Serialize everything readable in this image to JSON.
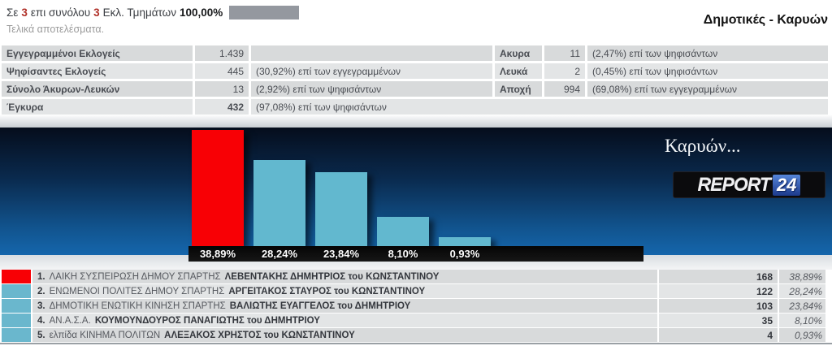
{
  "header": {
    "prefix": "Σε",
    "completed_sections": "3",
    "middle": "επι συνόλου",
    "total_sections": "3",
    "suffix": "Εκλ. Τμημάτων",
    "percent_counted": "100,00%",
    "final_note": "Τελικά αποτελέσματα.",
    "title": "Δημοτικές - Καρυών"
  },
  "stats_left": {
    "rows": [
      {
        "label": "Εγγεγραμμένοι Εκλογείς",
        "value": "1.439",
        "note": "",
        "value_bold": false
      },
      {
        "label": "Ψηφίσαντες Εκλογείς",
        "value": "445",
        "note": "(30,92%) επί των εγγεγραμμένων",
        "value_bold": false
      },
      {
        "label": "Σύνολο Άκυρων-Λευκών",
        "value": "13",
        "note": "(2,92%) επί των ψηφισάντων",
        "value_bold": false
      },
      {
        "label": "Έγκυρα",
        "value": "432",
        "note": "(97,08%) επί των ψηφισάντων",
        "value_bold": true
      }
    ]
  },
  "stats_right": {
    "rows": [
      {
        "label": "Ακυρα",
        "value": "11",
        "note": "(2,47%) επί των ψηφισάντων",
        "value_bold": false
      },
      {
        "label": "Λευκά",
        "value": "2",
        "note": "(0,45%) επί των ψηφισάντων",
        "value_bold": false
      },
      {
        "label": "Αποχή",
        "value": "994",
        "note": "(69,08%) επί των εγγεγραμμένων",
        "value_bold": false
      }
    ]
  },
  "chart_data": {
    "type": "bar",
    "title": "Καρυών...",
    "brand": "REPORT",
    "brand_num": "24",
    "categories": [
      "1",
      "2",
      "3",
      "4",
      "5"
    ],
    "values": [
      38.89,
      28.24,
      23.84,
      8.1,
      0.93
    ],
    "bar_labels": [
      "38,89%",
      "28,24%",
      "23,84%",
      "8,10%",
      "0,93%"
    ],
    "colors": [
      "#f80005",
      "#62b8cf",
      "#62b8cf",
      "#62b8cf",
      "#62b8cf"
    ],
    "ylim": [
      0,
      38.89
    ],
    "grid": false,
    "legend": "none",
    "background": [
      "#050d1c",
      "#1566ac"
    ]
  },
  "results": {
    "rows": [
      {
        "num": "1.",
        "party": "ΛΑΙΚΗ ΣΥΣΠΕΙΡΩΣΗ ΔΗΜΟΥ ΣΠΑΡΤΗΣ",
        "candidate": "ΛΕΒΕΝΤΑΚΗΣ ΔΗΜΗΤΡΙΟΣ του ΚΩΝΣΤΑΝΤΙΝΟΥ",
        "votes": "168",
        "pct": "38,89%",
        "color": "#f80005"
      },
      {
        "num": "2.",
        "party": "ΕΝΩΜΕΝΟΙ ΠΟΛΙΤΕΣ ΔΗΜΟΥ ΣΠΑΡΤΗΣ",
        "candidate": "ΑΡΓΕΙΤΑΚΟΣ ΣΤΑΥΡΟΣ του ΚΩΝΣΤΑΝΤΙΝΟΥ",
        "votes": "122",
        "pct": "28,24%",
        "color": "#6ab7cd"
      },
      {
        "num": "3.",
        "party": "ΔΗΜΟΤΙΚΗ ΕΝΩΤΙΚΗ ΚΙΝΗΣΗ ΣΠΑΡΤΗΣ",
        "candidate": "ΒΑΛΙΩΤΗΣ ΕΥΑΓΓΕΛΟΣ του ΔΗΜΗΤΡΙΟΥ",
        "votes": "103",
        "pct": "23,84%",
        "color": "#6ab7cd"
      },
      {
        "num": "4.",
        "party": "ΑΝ.Α.Σ.Α.",
        "candidate": "ΚΟΥΜΟΥΝΔΟΥΡΟΣ ΠΑΝΑΓΙΩΤΗΣ του ΔΗΜΗΤΡΙΟΥ",
        "votes": "35",
        "pct": "8,10%",
        "color": "#6ab7cd"
      },
      {
        "num": "5.",
        "party": "ελπίδα ΚΙΝΗΜΑ ΠΟΛΙΤΩΝ",
        "candidate": "ΑΛΕΞΑΚΟΣ ΧΡΗΣΤΟΣ του ΚΩΝΣΤΑΝΤΙΝΟΥ",
        "votes": "4",
        "pct": "0,93%",
        "color": "#6ab7cd"
      }
    ]
  }
}
